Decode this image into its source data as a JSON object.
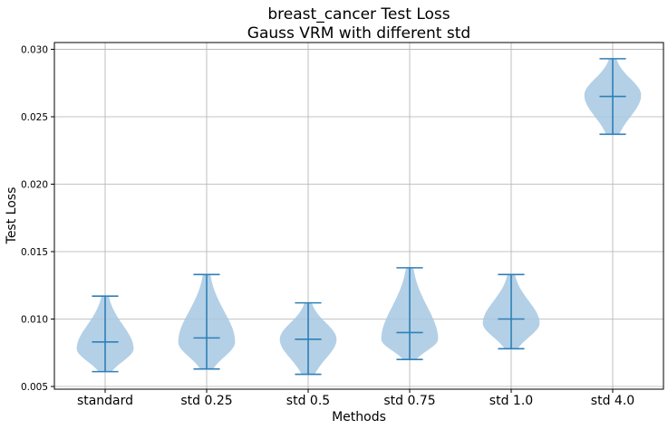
{
  "chart_data": {
    "type": "violin",
    "title": [
      "breast_cancer Test Loss",
      "Gauss VRM with different std"
    ],
    "xlabel": "Methods",
    "ylabel": "Test Loss",
    "ylim": [
      0.0048,
      0.0305
    ],
    "yticks": [
      "0.005",
      "0.010",
      "0.015",
      "0.020",
      "0.025",
      "0.030"
    ],
    "grid": true,
    "colors": {
      "body": "#a6c8e3",
      "line": "#2f7fb7",
      "grid": "#b0b0b0"
    },
    "categories": [
      "standard",
      "std 0.25",
      "std 0.5",
      "std 0.75",
      "std 1.0",
      "std 4.0"
    ],
    "violins": [
      {
        "min": 0.0061,
        "max": 0.0117,
        "median": 0.0083,
        "peak": 0.0078
      },
      {
        "min": 0.0063,
        "max": 0.0133,
        "median": 0.0086,
        "peak": 0.0083
      },
      {
        "min": 0.0059,
        "max": 0.0112,
        "median": 0.0085,
        "peak": 0.0085
      },
      {
        "min": 0.007,
        "max": 0.0138,
        "median": 0.009,
        "peak": 0.0085
      },
      {
        "min": 0.0078,
        "max": 0.0133,
        "median": 0.01,
        "peak": 0.0097
      },
      {
        "min": 0.0237,
        "max": 0.0293,
        "median": 0.0265,
        "peak": 0.0266
      }
    ]
  }
}
